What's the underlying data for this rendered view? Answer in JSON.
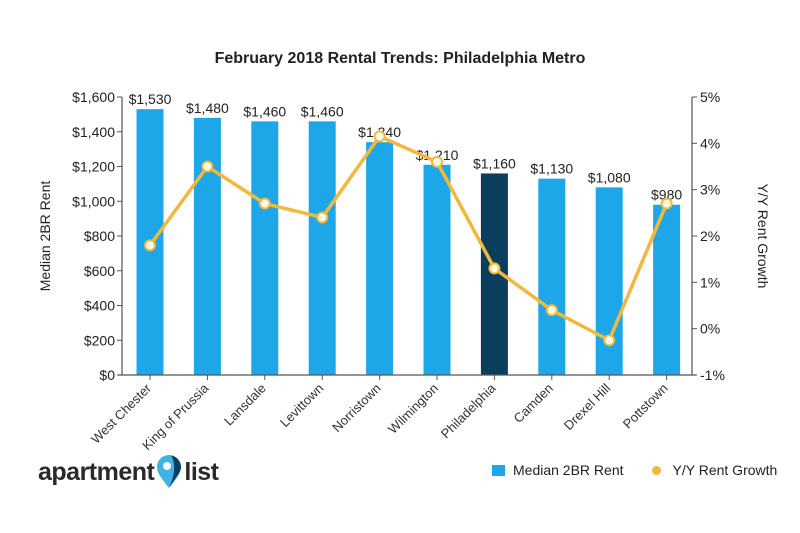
{
  "chart_data": {
    "type": "bar+line",
    "title": "February 2018 Rental Trends: Philadelphia Metro",
    "categories": [
      "West Chester",
      "King of Prussia",
      "Lansdale",
      "Levittown",
      "Norristown",
      "Wilmington",
      "Philadelphia",
      "Camden",
      "Drexel Hill",
      "Pottstown"
    ],
    "series": [
      {
        "name": "Median 2BR Rent",
        "type": "bar",
        "axis": "left",
        "values": [
          1530,
          1480,
          1460,
          1460,
          1340,
          1210,
          1160,
          1130,
          1080,
          980
        ],
        "labels": [
          "$1,530",
          "$1,480",
          "$1,460",
          "$1,460",
          "$1,340",
          "$1,210",
          "$1,160",
          "$1,130",
          "$1,080",
          "$980"
        ],
        "color": "#1ea7e8",
        "highlight_category": "Philadelphia",
        "highlight_color": "#0b3d5c"
      },
      {
        "name": "Y/Y Rent Growth",
        "type": "line",
        "axis": "right",
        "values": [
          1.8,
          3.5,
          2.7,
          2.4,
          4.15,
          3.6,
          1.3,
          0.4,
          -0.25,
          2.7
        ],
        "color": "#f3b73b"
      }
    ],
    "ylabel": "Median 2BR Rent",
    "ylim": [
      0,
      1600
    ],
    "yticks": [
      "$0",
      "$200",
      "$400",
      "$600",
      "$800",
      "$1,000",
      "$1,200",
      "$1,400",
      "$1,600"
    ],
    "y2label": "Y/Y Rent Growth",
    "y2lim": [
      -1,
      5
    ],
    "y2ticks": [
      "-1%",
      "0%",
      "1%",
      "2%",
      "3%",
      "4%",
      "5%"
    ],
    "grid": false,
    "legend": "bottom-right"
  },
  "logo": {
    "text_left": "apartment",
    "text_right": "list"
  }
}
